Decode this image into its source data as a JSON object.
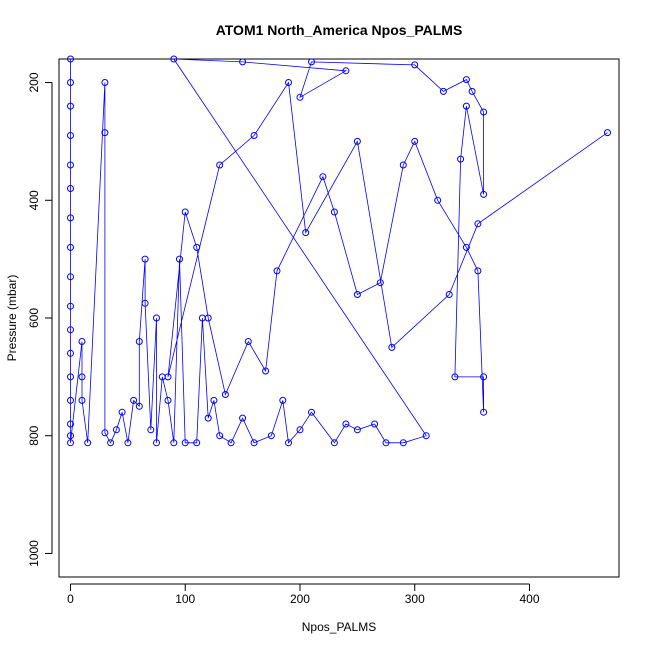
{
  "chart_data": {
    "type": "scatter",
    "title": "ATOM1 North_America Npos_PALMS",
    "xlabel": "Npos_PALMS",
    "ylabel": "Pressure (mbar)",
    "xlim": [
      -10,
      478
    ],
    "ylim": [
      160,
      1040
    ],
    "y_reversed": true,
    "x_ticks": [
      "0",
      "100",
      "200",
      "300",
      "400"
    ],
    "y_ticks": [
      "200",
      "400",
      "600",
      "800",
      "1000"
    ],
    "grid": false,
    "legend": "none",
    "colors": {
      "series": "#0000ff",
      "axis": "#000000"
    },
    "series": [
      {
        "values": [
          [
            0,
            160
          ],
          [
            0,
            200
          ],
          [
            0,
            240
          ],
          [
            0,
            290
          ],
          [
            0,
            340
          ],
          [
            0,
            380
          ],
          [
            0,
            430
          ],
          [
            0,
            480
          ],
          [
            0,
            530
          ],
          [
            0,
            580
          ],
          [
            0,
            620
          ],
          [
            0,
            660
          ],
          [
            0,
            700
          ],
          [
            0,
            740
          ],
          [
            0,
            780
          ],
          [
            0,
            800
          ],
          [
            0,
            812
          ],
          [
            10,
            640
          ],
          [
            10,
            700
          ],
          [
            10,
            740
          ],
          [
            15,
            812
          ],
          [
            30,
            200
          ],
          [
            30,
            285
          ],
          [
            30,
            795
          ],
          [
            35,
            812
          ],
          [
            40,
            790
          ],
          [
            45,
            760
          ],
          [
            50,
            812
          ],
          [
            55,
            740
          ],
          [
            60,
            750
          ],
          [
            60,
            640
          ],
          [
            65,
            500
          ],
          [
            65,
            575
          ],
          [
            70,
            790
          ],
          [
            75,
            600
          ],
          [
            75,
            812
          ],
          [
            80,
            700
          ],
          [
            85,
            740
          ],
          [
            90,
            812
          ],
          [
            95,
            500
          ],
          [
            100,
            812
          ],
          [
            110,
            812
          ],
          [
            115,
            600
          ],
          [
            120,
            770
          ],
          [
            125,
            740
          ],
          [
            130,
            800
          ],
          [
            140,
            812
          ],
          [
            150,
            770
          ],
          [
            160,
            812
          ],
          [
            175,
            800
          ],
          [
            185,
            740
          ],
          [
            190,
            812
          ],
          [
            200,
            790
          ],
          [
            210,
            760
          ],
          [
            230,
            812
          ],
          [
            240,
            780
          ],
          [
            250,
            790
          ],
          [
            265,
            780
          ],
          [
            275,
            812
          ],
          [
            290,
            812
          ],
          [
            310,
            800
          ],
          [
            90,
            160
          ],
          [
            150,
            165
          ],
          [
            240,
            180
          ],
          [
            200,
            225
          ],
          [
            210,
            165
          ],
          [
            300,
            170
          ],
          [
            325,
            215
          ],
          [
            345,
            195
          ],
          [
            350,
            215
          ],
          [
            360,
            250
          ],
          [
            360,
            390
          ],
          [
            345,
            240
          ],
          [
            340,
            330
          ],
          [
            335,
            700
          ],
          [
            360,
            700
          ],
          [
            360,
            760
          ],
          [
            355,
            520
          ],
          [
            345,
            480
          ],
          [
            320,
            400
          ],
          [
            300,
            300
          ],
          [
            290,
            340
          ],
          [
            270,
            540
          ],
          [
            250,
            560
          ],
          [
            230,
            420
          ],
          [
            220,
            360
          ],
          [
            180,
            520
          ],
          [
            170,
            690
          ],
          [
            155,
            640
          ],
          [
            135,
            730
          ],
          [
            120,
            600
          ],
          [
            110,
            480
          ],
          [
            100,
            420
          ],
          [
            85,
            700
          ],
          [
            130,
            340
          ],
          [
            160,
            290
          ],
          [
            190,
            200
          ],
          [
            205,
            455
          ],
          [
            250,
            300
          ],
          [
            280,
            650
          ],
          [
            330,
            560
          ],
          [
            355,
            440
          ],
          [
            468,
            285
          ]
        ]
      }
    ]
  }
}
